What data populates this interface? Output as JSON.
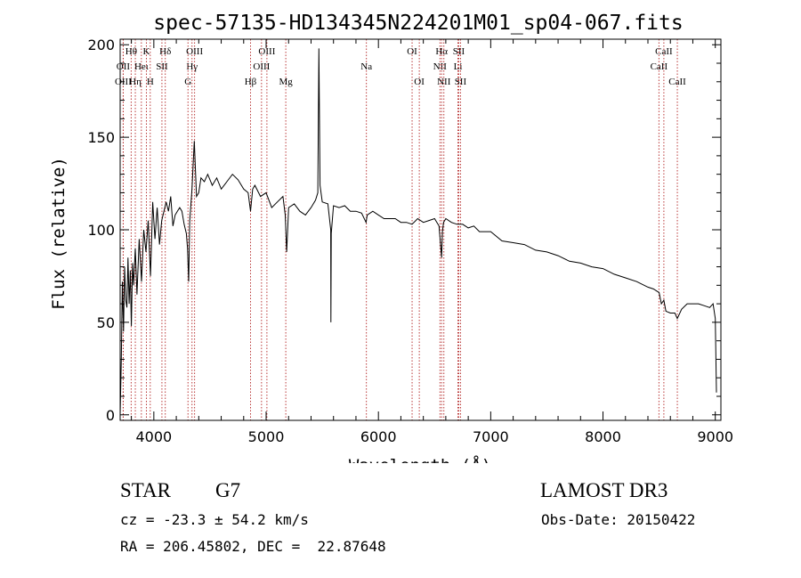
{
  "chart_data": {
    "type": "line",
    "title": "spec-57135-HD134345N224201M01_sp04-067.fits",
    "xlabel": "Wavelength (Å)",
    "ylabel": "Flux (relative)",
    "xlim": [
      3700,
      9050
    ],
    "ylim": [
      -3,
      203
    ],
    "xticks": [
      4000,
      5000,
      6000,
      7000,
      8000,
      9000
    ],
    "yticks": [
      0,
      50,
      100,
      150,
      200
    ],
    "x_minor_step": 200,
    "y_minor_step": 10,
    "spectrum": {
      "name": "flux",
      "x": [
        3700,
        3710,
        3720,
        3730,
        3740,
        3750,
        3760,
        3770,
        3780,
        3790,
        3800,
        3810,
        3820,
        3835,
        3850,
        3870,
        3890,
        3910,
        3930,
        3950,
        3970,
        3990,
        4010,
        4030,
        4050,
        4070,
        4090,
        4110,
        4130,
        4150,
        4170,
        4190,
        4210,
        4230,
        4250,
        4270,
        4290,
        4300,
        4310,
        4320,
        4340,
        4360,
        4380,
        4400,
        4420,
        4450,
        4480,
        4520,
        4560,
        4600,
        4650,
        4700,
        4750,
        4800,
        4840,
        4861,
        4880,
        4900,
        4950,
        5000,
        5050,
        5100,
        5150,
        5170,
        5183,
        5200,
        5250,
        5300,
        5350,
        5400,
        5440,
        5460,
        5470,
        5480,
        5500,
        5550,
        5575,
        5577,
        5580,
        5600,
        5650,
        5700,
        5750,
        5800,
        5850,
        5890,
        5900,
        5950,
        6000,
        6050,
        6100,
        6150,
        6200,
        6250,
        6300,
        6350,
        6400,
        6450,
        6500,
        6540,
        6563,
        6570,
        6580,
        6600,
        6650,
        6700,
        6750,
        6800,
        6850,
        6900,
        6950,
        7000,
        7100,
        7200,
        7300,
        7400,
        7500,
        7600,
        7700,
        7800,
        7900,
        8000,
        8100,
        8200,
        8300,
        8400,
        8450,
        8500,
        8520,
        8542,
        8560,
        8600,
        8640,
        8662,
        8700,
        8750,
        8800,
        8850,
        8900,
        8950,
        8980,
        9000,
        9010
      ],
      "y": [
        0,
        30,
        72,
        45,
        80,
        62,
        58,
        85,
        60,
        78,
        48,
        82,
        70,
        90,
        65,
        95,
        72,
        100,
        88,
        105,
        75,
        115,
        95,
        112,
        92,
        105,
        110,
        115,
        110,
        118,
        102,
        108,
        110,
        112,
        110,
        103,
        98,
        90,
        72,
        105,
        122,
        148,
        118,
        120,
        128,
        126,
        130,
        124,
        128,
        122,
        126,
        130,
        127,
        122,
        120,
        110,
        122,
        124,
        118,
        120,
        112,
        115,
        118,
        108,
        88,
        112,
        114,
        110,
        108,
        112,
        116,
        120,
        198,
        124,
        115,
        114,
        100,
        50,
        98,
        113,
        112,
        113,
        110,
        110,
        109,
        104,
        108,
        110,
        108,
        106,
        106,
        106,
        104,
        104,
        103,
        106,
        104,
        105,
        106,
        102,
        85,
        99,
        104,
        106,
        104,
        103,
        103,
        101,
        102,
        99,
        99,
        99,
        94,
        93,
        92,
        89,
        88,
        86,
        83,
        82,
        80,
        79,
        76,
        74,
        72,
        69,
        68,
        66,
        60,
        62,
        56,
        55,
        55,
        52,
        57,
        60,
        60,
        60,
        59,
        58,
        60,
        52,
        12
      ]
    },
    "lines": [
      {
        "label": "Hθ",
        "wave": 3798,
        "row": 0
      },
      {
        "label": "OII",
        "wave": 3727,
        "row": 1
      },
      {
        "label": "OIII",
        "wave": 3727,
        "row": 2
      },
      {
        "label": "Hη",
        "wave": 3835,
        "row": 2
      },
      {
        "label": "Heι",
        "wave": 3889,
        "row": 1
      },
      {
        "label": "K",
        "wave": 3934,
        "row": 0
      },
      {
        "label": "H",
        "wave": 3968,
        "row": 2
      },
      {
        "label": "SII",
        "wave": 4072,
        "row": 1
      },
      {
        "label": "Hδ",
        "wave": 4102,
        "row": 0
      },
      {
        "label": "Hγ",
        "wave": 4340,
        "row": 1
      },
      {
        "label": "G",
        "wave": 4304,
        "row": 2
      },
      {
        "label": "OIII",
        "wave": 4363,
        "row": 0
      },
      {
        "label": "Hβ",
        "wave": 4861,
        "row": 2
      },
      {
        "label": "OIII",
        "wave": 4959,
        "row": 1
      },
      {
        "label": "OIII",
        "wave": 5007,
        "row": 0
      },
      {
        "label": "Mg",
        "wave": 5175,
        "row": 2
      },
      {
        "label": "Na",
        "wave": 5893,
        "row": 1
      },
      {
        "label": "OI",
        "wave": 6300,
        "row": 0
      },
      {
        "label": "OI",
        "wave": 6364,
        "row": 2
      },
      {
        "label": "NII",
        "wave": 6548,
        "row": 1
      },
      {
        "label": "Hα",
        "wave": 6563,
        "row": 0
      },
      {
        "label": "NII",
        "wave": 6583,
        "row": 2
      },
      {
        "label": "SII",
        "wave": 6716,
        "row": 0
      },
      {
        "label": "Li",
        "wave": 6708,
        "row": 1
      },
      {
        "label": "SII",
        "wave": 6731,
        "row": 2
      },
      {
        "label": "CaII",
        "wave": 8498,
        "row": 1
      },
      {
        "label": "CaII",
        "wave": 8542,
        "row": 0
      },
      {
        "label": "CaII",
        "wave": 8662,
        "row": 2
      }
    ]
  },
  "info": {
    "object_type": "STAR",
    "subclass": "G7",
    "survey": "LAMOST DR3",
    "redshift": "cz = -23.3 ± 54.2 km/s",
    "obs_date": "Obs-Date: 20150422",
    "coords": "RA = 206.45802, DEC =  22.87648"
  },
  "colors": {
    "line_marker": "#b22222",
    "axis": "#000000",
    "spectrum": "#000000"
  }
}
